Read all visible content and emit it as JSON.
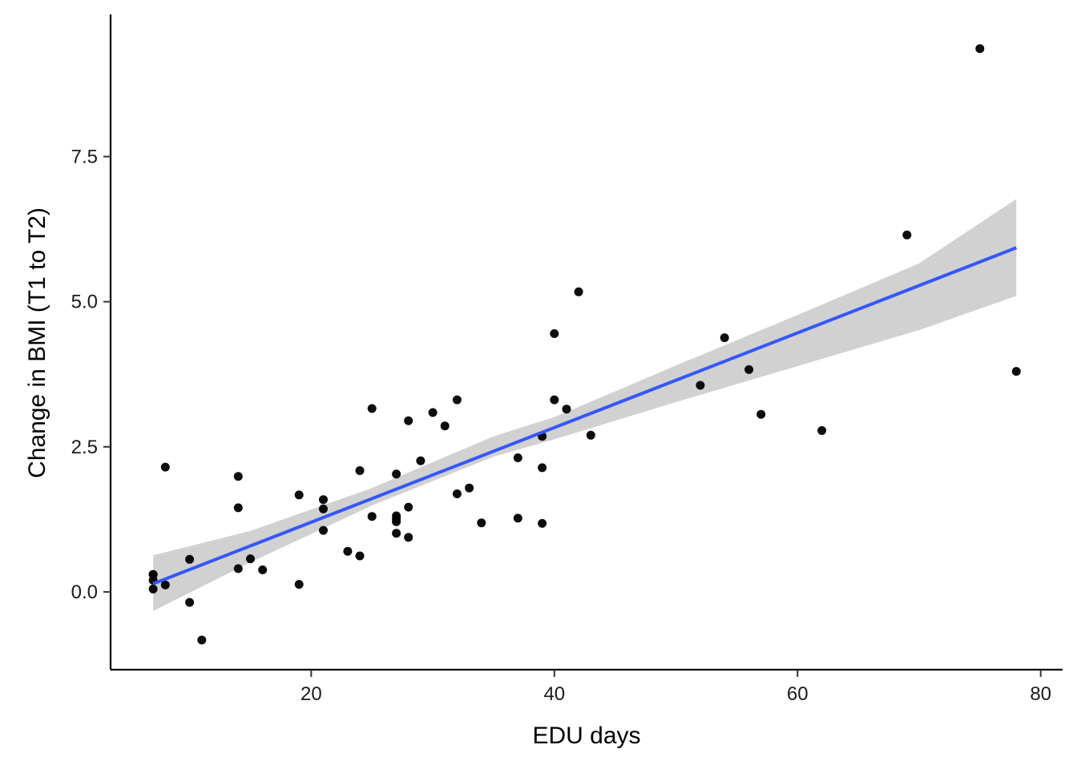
{
  "chart_data": {
    "type": "scatter",
    "title": "",
    "xlabel": "EDU days",
    "ylabel": "Change in BMI (T1 to T2)",
    "xlim": [
      3.5,
      81.8
    ],
    "ylim": [
      -1.34,
      9.95
    ],
    "x_ticks": [
      20,
      40,
      60,
      80
    ],
    "x_tick_labels": [
      "20",
      "40",
      "60",
      "80"
    ],
    "y_ticks": [
      0,
      2.5,
      5,
      7.5
    ],
    "y_tick_labels": [
      "0.0",
      "2.5",
      "5.0",
      "7.5"
    ],
    "grid": false,
    "legend": "none",
    "points": {
      "color": "#000000",
      "x": [
        7,
        7,
        7,
        7,
        8,
        8,
        10,
        10,
        11,
        14,
        14,
        14,
        15,
        16,
        19,
        19,
        21,
        21,
        21,
        23,
        24,
        24,
        25,
        25,
        27,
        27,
        27,
        27,
        27,
        28,
        28,
        28,
        29,
        30,
        31,
        32,
        32,
        33,
        34,
        37,
        37,
        39,
        39,
        39,
        40,
        40,
        41,
        42,
        43,
        52,
        54,
        56,
        57,
        62,
        69,
        75,
        78
      ],
      "y": [
        0.3,
        0.2,
        0.05,
        0.3,
        2.15,
        0.12,
        0.56,
        -0.18,
        -0.83,
        1.99,
        1.45,
        0.4,
        0.57,
        0.38,
        1.67,
        0.13,
        1.59,
        1.43,
        1.06,
        0.7,
        0.62,
        2.09,
        3.16,
        1.3,
        2.03,
        1.31,
        1.26,
        1.21,
        1.01,
        2.95,
        1.46,
        0.94,
        2.26,
        3.09,
        2.86,
        3.31,
        1.69,
        1.79,
        1.19,
        2.31,
        1.27,
        2.68,
        2.14,
        1.18,
        4.45,
        3.31,
        3.15,
        5.17,
        2.7,
        3.56,
        4.38,
        3.83,
        3.06,
        2.78,
        6.15,
        9.36,
        3.8
      ]
    },
    "trend_line": {
      "color": "#3557F8",
      "x": [
        7,
        78
      ],
      "y": [
        0.14,
        5.93
      ]
    },
    "confidence_band": {
      "color": "#CCCCCC",
      "x": [
        7,
        15,
        25,
        35,
        40,
        50,
        60,
        70,
        78
      ],
      "lower": [
        -0.33,
        0.51,
        1.49,
        2.33,
        2.63,
        3.27,
        3.89,
        4.51,
        5.1
      ],
      "upper": [
        0.63,
        1.05,
        1.79,
        2.68,
        3.01,
        3.9,
        4.77,
        5.66,
        6.77
      ]
    }
  }
}
